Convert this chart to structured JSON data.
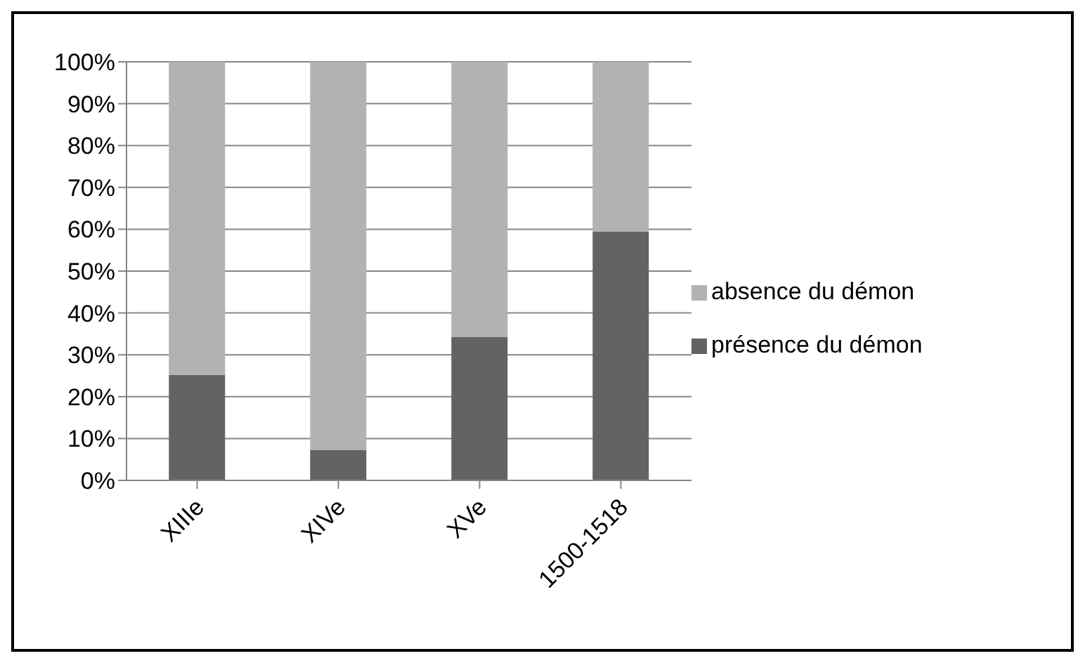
{
  "chart_data": {
    "type": "bar",
    "stacked": true,
    "categories": [
      "XIIIe",
      "XIVe",
      "XVe",
      "1500-1518"
    ],
    "series": [
      {
        "name": "présence du démon",
        "color": "#636363",
        "values": [
          25.2,
          7.3,
          34.3,
          59.4
        ]
      },
      {
        "name": "absence du démon",
        "color": "#b2b2b2",
        "values": [
          74.8,
          92.7,
          65.7,
          40.6
        ]
      }
    ],
    "ylim": [
      0,
      100
    ],
    "yticks": [
      {
        "value": 0,
        "label": "0%"
      },
      {
        "value": 10,
        "label": "10%"
      },
      {
        "value": 20,
        "label": "20%"
      },
      {
        "value": 30,
        "label": "30%"
      },
      {
        "value": 40,
        "label": "40%"
      },
      {
        "value": 50,
        "label": "50%"
      },
      {
        "value": 60,
        "label": "60%"
      },
      {
        "value": 70,
        "label": "70%"
      },
      {
        "value": 80,
        "label": "80%"
      },
      {
        "value": 90,
        "label": "90%"
      },
      {
        "value": 100,
        "label": "100%"
      }
    ],
    "grid": "y",
    "legend": "right"
  }
}
